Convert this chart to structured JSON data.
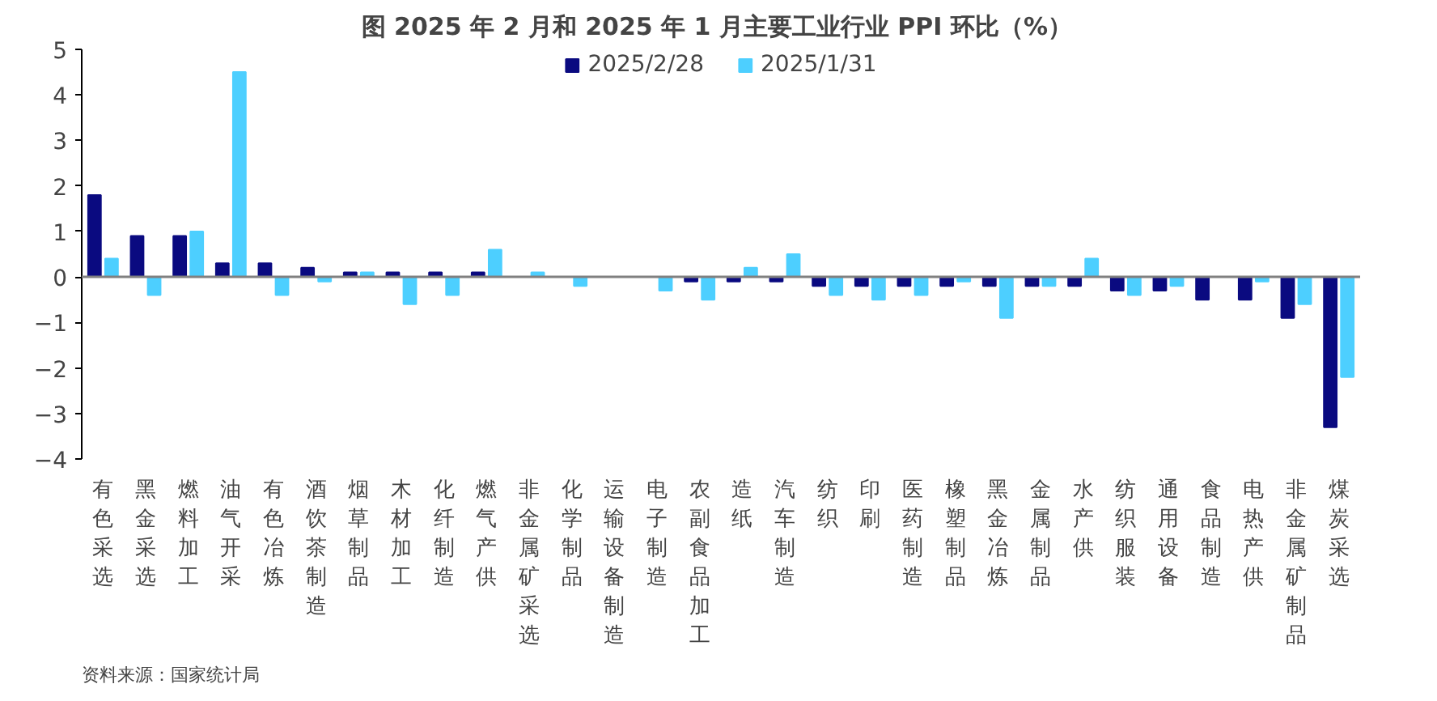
{
  "chart_data": {
    "type": "bar",
    "title": "图  2025 年 2 月和 2025 年 1 月主要工业行业 PPI 环比（%）",
    "categories": [
      "有色采选",
      "黑金采选",
      "燃料加工",
      "油气开采",
      "有色冶炼",
      "酒饮茶制造",
      "烟草制品",
      "木材加工",
      "化纤制造",
      "燃气产供",
      "非金属矿采选",
      "化学制品",
      "运输设备制造",
      "电子制造",
      "农副食品加工",
      "造纸",
      "汽车制造",
      "纺织",
      "印刷",
      "医药制造",
      "橡塑制品",
      "黑金冶炼",
      "金属制品",
      "水产供",
      "纺织服装",
      "通用设备",
      "食品制造",
      "电热产供",
      "非金属矿制品",
      "煤炭采选"
    ],
    "series": [
      {
        "name": "2025/2/28",
        "color": "#0a0a80",
        "values": [
          1.8,
          0.9,
          0.9,
          0.3,
          0.3,
          0.2,
          0.1,
          0.1,
          0.1,
          0.1,
          0,
          0,
          0,
          0,
          -0.1,
          -0.1,
          -0.1,
          -0.2,
          -0.2,
          -0.2,
          -0.2,
          -0.2,
          -0.2,
          -0.2,
          -0.3,
          -0.3,
          -0.5,
          -0.5,
          -0.9,
          -3.3
        ]
      },
      {
        "name": "2025/1/31",
        "color": "#4dcfff",
        "values": [
          0.4,
          -0.4,
          1.0,
          4.5,
          -0.4,
          -0.1,
          0.1,
          -0.6,
          -0.4,
          0.6,
          0.1,
          -0.2,
          0,
          -0.3,
          -0.5,
          0.2,
          0.5,
          -0.4,
          -0.5,
          -0.4,
          -0.1,
          -0.9,
          -0.2,
          0.4,
          -0.4,
          -0.2,
          0,
          -0.1,
          -0.6,
          -2.2
        ]
      }
    ],
    "ylim": [
      -4,
      5
    ],
    "yticks": [
      -4,
      -3,
      -2,
      -1,
      0,
      1,
      2,
      3,
      4,
      5
    ],
    "legend": "top",
    "annotations": [
      "资料来源：国家统计局"
    ]
  }
}
